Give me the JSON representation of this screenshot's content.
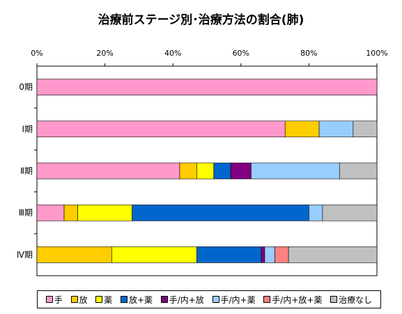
{
  "chart_data": {
    "type": "bar",
    "orientation": "horizontal",
    "stacked": true,
    "title": "治療前ステージ別･治療方法の割合(肺)",
    "x_axis": {
      "position": "top",
      "range": [
        0,
        100
      ],
      "ticks": [
        "0%",
        "20%",
        "40%",
        "60%",
        "80%",
        "100%"
      ]
    },
    "grid": false,
    "legend_position": "bottom",
    "categories": [
      "0期",
      "Ⅰ期",
      "Ⅱ期",
      "Ⅲ期",
      "Ⅳ期"
    ],
    "series": [
      {
        "name": "手",
        "color": "#ff99cc",
        "values": [
          100,
          73,
          42,
          8,
          0
        ]
      },
      {
        "name": "放",
        "color": "#ffcc00",
        "values": [
          0,
          10,
          5,
          4,
          22
        ]
      },
      {
        "name": "薬",
        "color": "#ffff00",
        "values": [
          0,
          0,
          5,
          16,
          25
        ]
      },
      {
        "name": "放+薬",
        "color": "#0066cc",
        "values": [
          0,
          0,
          5,
          52,
          19
        ]
      },
      {
        "name": "手/内+放",
        "color": "#800080",
        "values": [
          0,
          0,
          6,
          0,
          1
        ]
      },
      {
        "name": "手/内+薬",
        "color": "#99ccff",
        "values": [
          0,
          10,
          26,
          4,
          3
        ]
      },
      {
        "name": "手/内+放+薬",
        "color": "#ff8080",
        "values": [
          0,
          0,
          0,
          0,
          4
        ]
      },
      {
        "name": "治療なし",
        "color": "#c0c0c0",
        "values": [
          0,
          7,
          11,
          16,
          26
        ]
      }
    ]
  }
}
